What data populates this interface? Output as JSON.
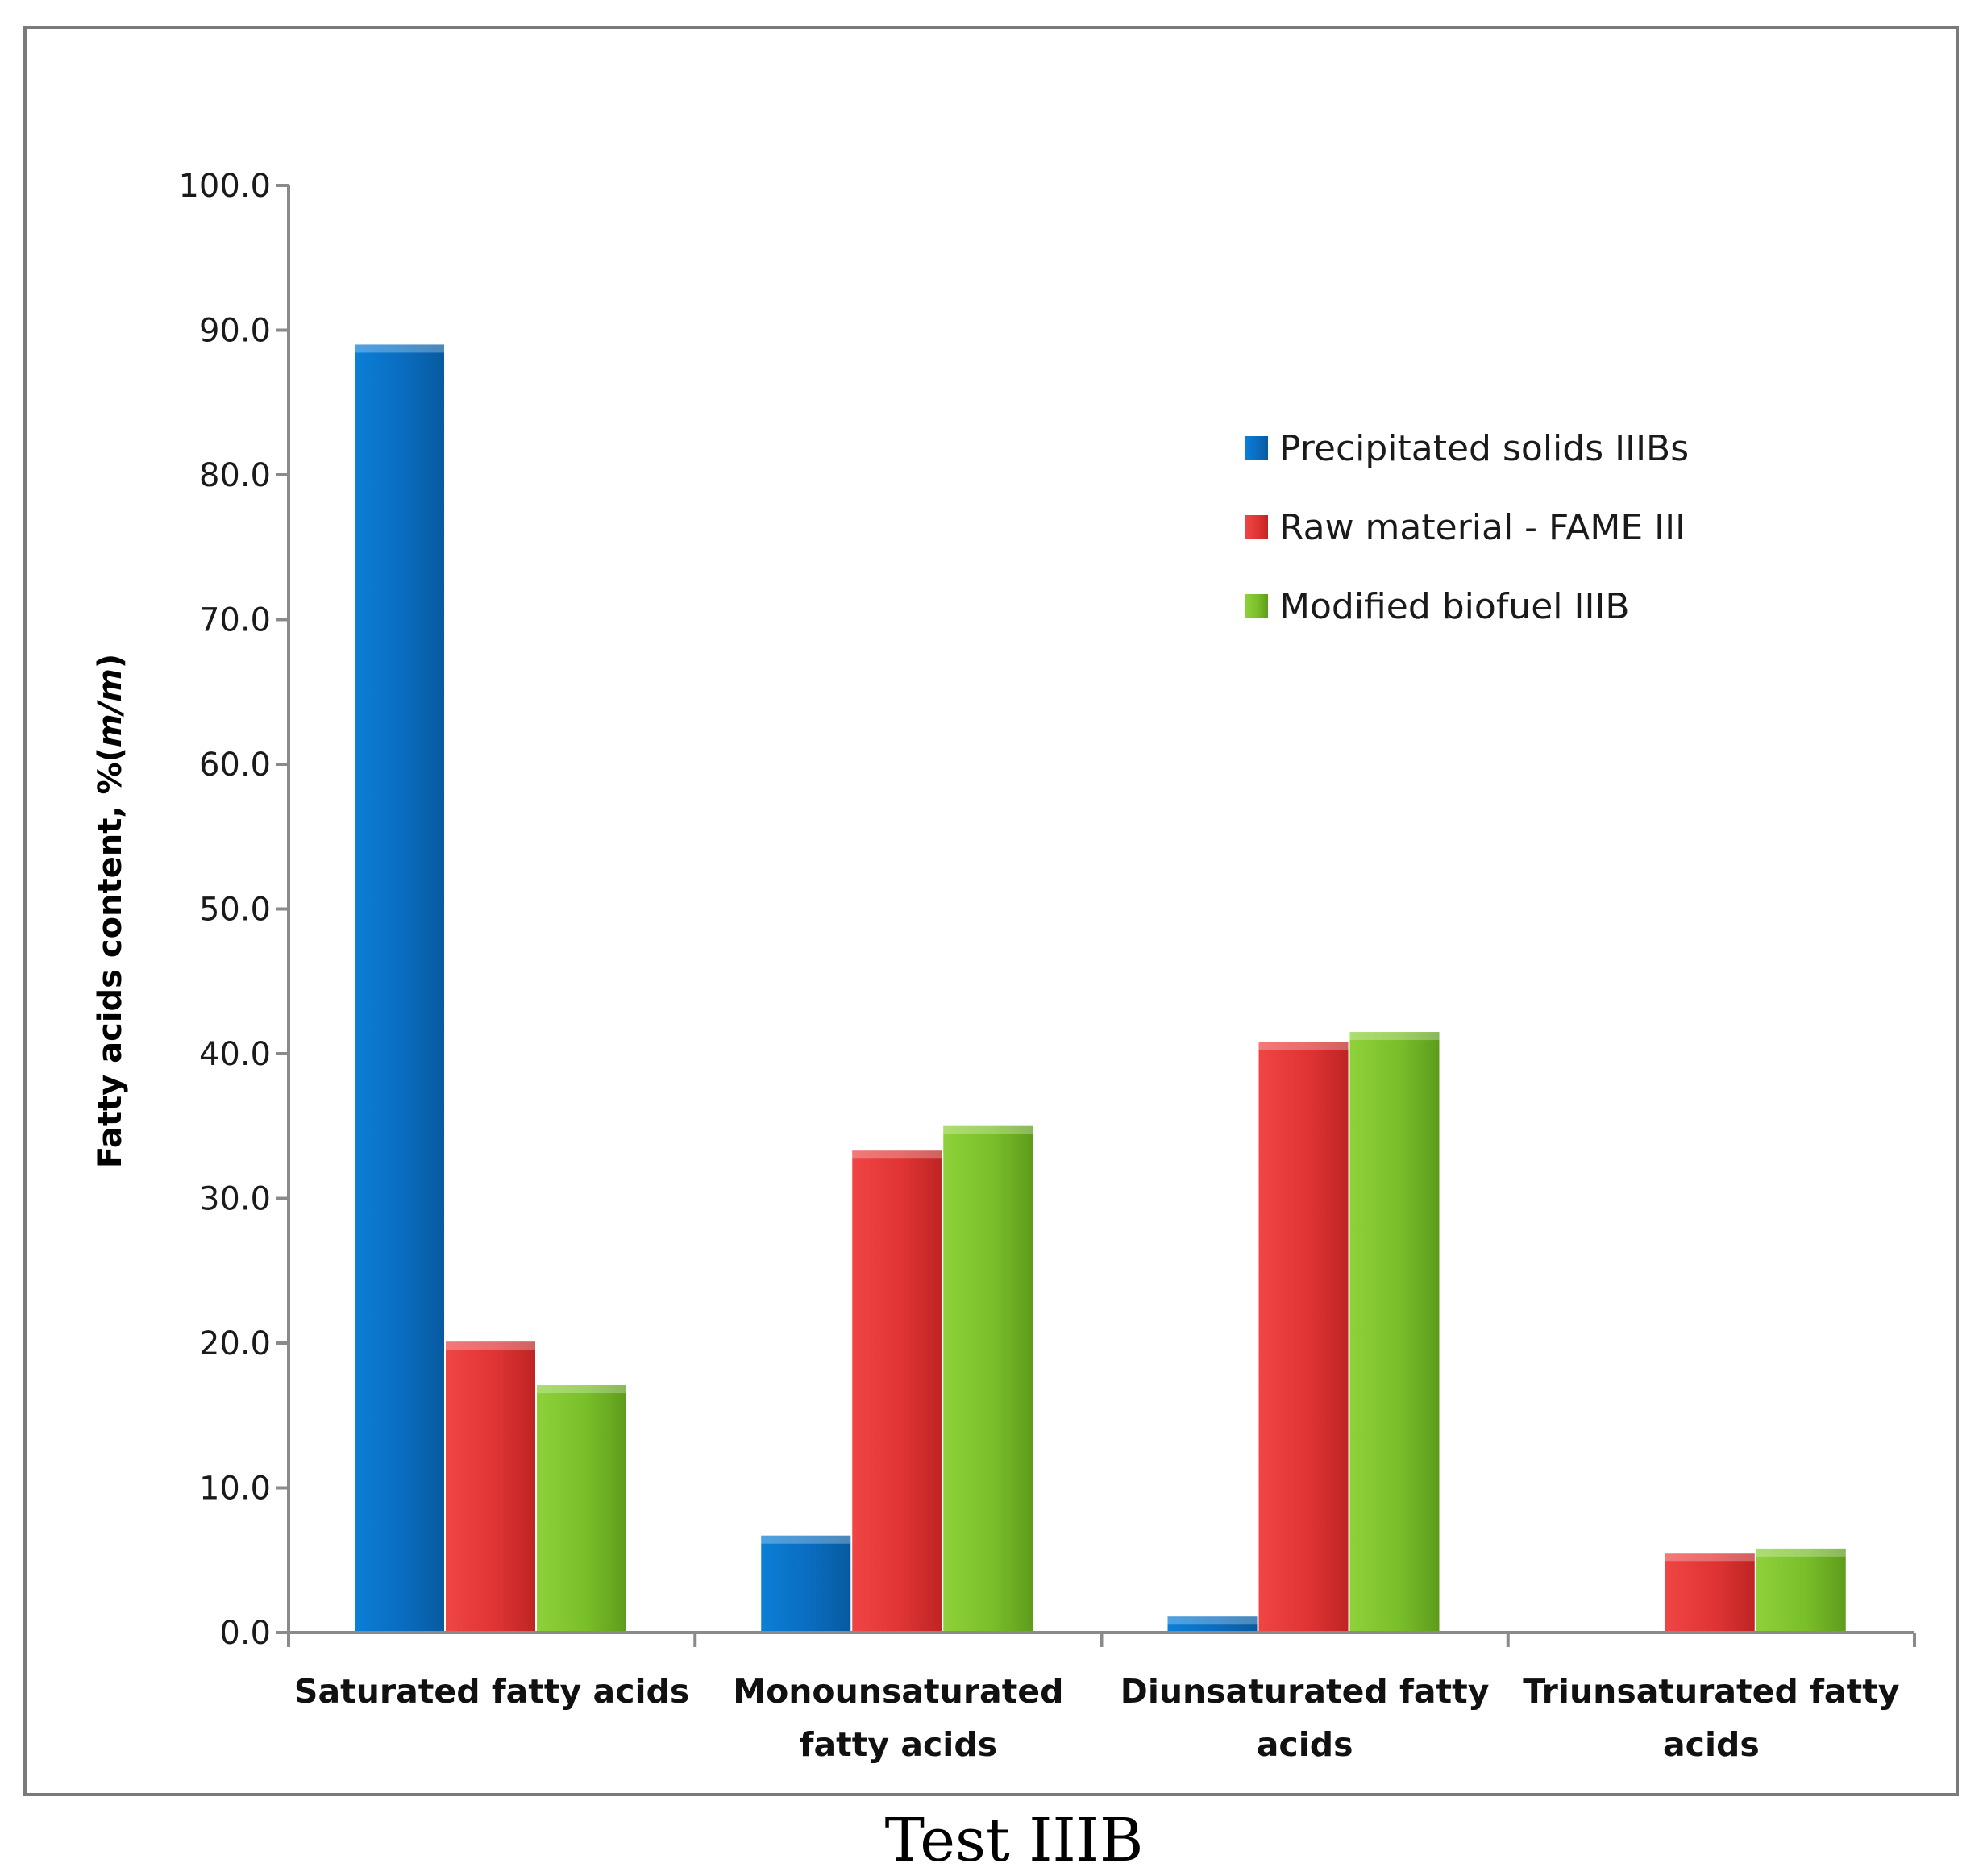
{
  "chart_data": {
    "type": "bar",
    "title": "",
    "caption": "Test IIIB",
    "xlabel": "",
    "ylabel": "Fatty acids content, %(m/m)",
    "ylim": [
      0,
      100
    ],
    "yticks": [
      0,
      10,
      20,
      30,
      40,
      50,
      60,
      70,
      80,
      90,
      100
    ],
    "ytick_labels": [
      "0.0",
      "10.0",
      "20.0",
      "30.0",
      "40.0",
      "50.0",
      "60.0",
      "70.0",
      "80.0",
      "90.0",
      "100.0"
    ],
    "grid": false,
    "legend_position": "top-right",
    "categories": [
      [
        "Saturated fatty acids"
      ],
      [
        "Monounsaturated",
        "fatty acids"
      ],
      [
        "Diunsaturated fatty",
        "acids"
      ],
      [
        "Triunsaturated fatty",
        "acids"
      ]
    ],
    "series": [
      {
        "name": "Precipitated solids IIIBs",
        "color": "#0a74c8",
        "values": [
          89.0,
          6.7,
          1.1,
          0.0
        ]
      },
      {
        "name": "Raw material - FAME III",
        "color": "#e53434",
        "values": [
          20.1,
          33.3,
          40.8,
          5.5
        ]
      },
      {
        "name": "Modified biofuel IIIB",
        "color": "#7cc22c",
        "values": [
          17.1,
          35.0,
          41.5,
          5.8
        ]
      }
    ]
  }
}
